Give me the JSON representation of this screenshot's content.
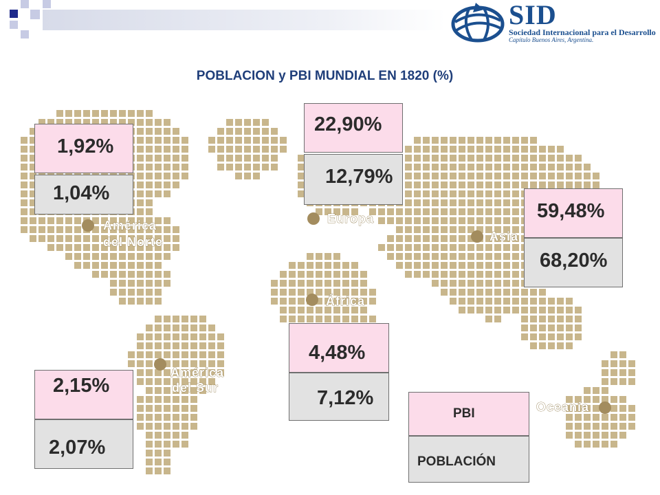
{
  "title": "POBLACION y PBI MUNDIAL EN 1820 (%)",
  "logo": {
    "name": "SID",
    "subtitle": "Sociedad Internacional para el Desarrollo",
    "chapter": "Capítulo Buenos Aires, Argentina."
  },
  "regions": {
    "north_america": {
      "label_line1": "América",
      "label_line2": "del Norte",
      "pbi": "1,92%",
      "poblacion": "1,04%"
    },
    "europe": {
      "label": "Europa",
      "pbi": "22,90%",
      "poblacion": "12,79%"
    },
    "asia": {
      "label": "Asia",
      "pbi": "59,48%",
      "poblacion": "68,20%"
    },
    "africa": {
      "label": "África",
      "pbi": "4,48%",
      "poblacion": "7,12%"
    },
    "south_america": {
      "label_line1": "América",
      "label_line2": "del Sur",
      "pbi": "2,15%",
      "poblacion": "2,07%"
    },
    "oceania": {
      "label": "Oceanía"
    }
  },
  "legend": {
    "pbi": "PBI",
    "poblacion": "POBLACIÓN"
  },
  "colors": {
    "pbi_box": "#fcdcea",
    "poblacion_box": "#e2e2e2",
    "title": "#1f3e7a",
    "map_tile": "#c8b68c",
    "logo": "#1b4f8f"
  }
}
